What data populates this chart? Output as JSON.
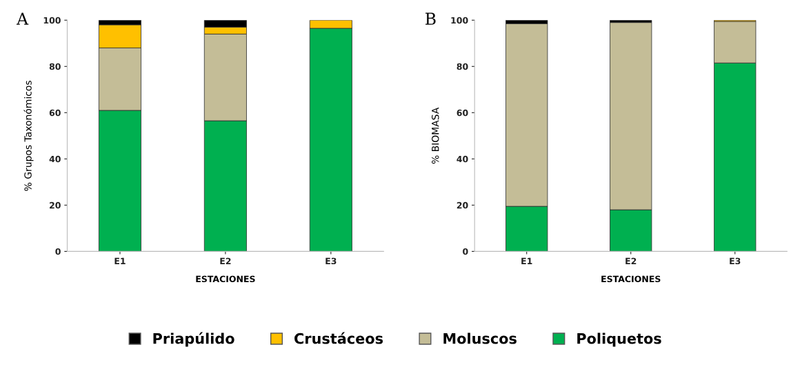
{
  "chart_data": [
    {
      "type": "bar",
      "stacked": true,
      "categories": [
        "E1",
        "E2",
        "E3"
      ],
      "xlabel": "ESTACIONES",
      "ylabel": "% Grupos Taxonómicos",
      "ylim": [
        0,
        100
      ],
      "yticks": [
        0,
        20,
        40,
        60,
        80,
        100
      ],
      "grid": false,
      "legend": "bottom",
      "annotations": [
        "A"
      ],
      "series": [
        {
          "name": "Poliquetos",
          "color": "#00b050",
          "values": [
            61,
            56.5,
            96.5
          ]
        },
        {
          "name": "Moluscos",
          "color": "#c4bd97",
          "values": [
            27,
            37.5,
            0
          ]
        },
        {
          "name": "Crustáceos",
          "color": "#ffc000",
          "values": [
            10,
            3,
            3.5
          ]
        },
        {
          "name": "Priapúlido",
          "color": "#000000",
          "values": [
            2,
            3,
            0
          ]
        }
      ]
    },
    {
      "type": "bar",
      "stacked": true,
      "categories": [
        "E1",
        "E2",
        "E3"
      ],
      "xlabel": "ESTACIONES",
      "ylabel": "% BIOMASA",
      "ylim": [
        0,
        100
      ],
      "yticks": [
        0,
        20,
        40,
        60,
        80,
        100
      ],
      "grid": false,
      "annotations": [
        "B"
      ],
      "series": [
        {
          "color": "#00b050",
          "values": [
            19.5,
            18,
            81.5
          ]
        },
        {
          "color": "#c4bd97",
          "values": [
            79,
            81,
            18
          ]
        },
        {
          "color": "#ffc000",
          "values": [
            0,
            0,
            0.5
          ]
        },
        {
          "color": "#000000",
          "values": [
            1.5,
            1,
            0
          ]
        }
      ]
    }
  ]
}
